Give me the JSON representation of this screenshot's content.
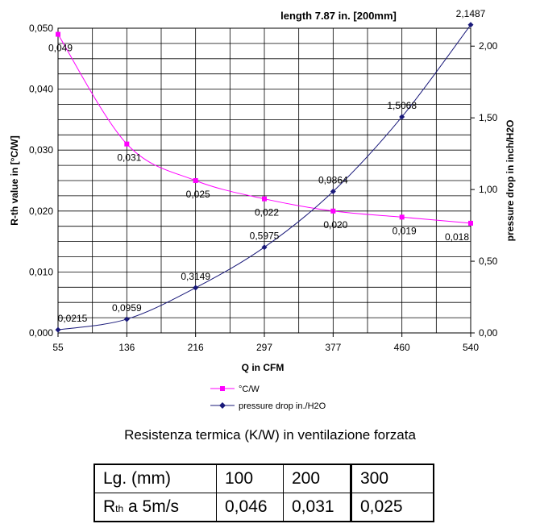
{
  "chart_data": {
    "type": "line",
    "title": "length 7.87 in. [200mm]",
    "xlabel": "Q in CFM",
    "ylabel_left": "R-th value in [°C/W]",
    "ylabel_right": "pressure drop in inch/H2O",
    "x": [
      55,
      136,
      216,
      297,
      377,
      460,
      540
    ],
    "x_tick_labels": [
      "55",
      "136",
      "216",
      "297",
      "377",
      "460",
      "540"
    ],
    "ylim_left": [
      0,
      0.05
    ],
    "yticks_left": [
      "0,000",
      "0,010",
      "0,020",
      "0,030",
      "0,040",
      "0,050"
    ],
    "ylim_right": [
      0,
      2.125
    ],
    "yticks_right": [
      "0,00",
      "0,50",
      "1,00",
      "1,50",
      "2,00"
    ],
    "grid": true,
    "legend_position": "bottom-center",
    "series": [
      {
        "name": "°C/W",
        "axis": "left",
        "color": "#ff00ff",
        "marker": "square",
        "values": [
          0.049,
          0.031,
          0.025,
          0.022,
          0.02,
          0.019,
          0.018
        ],
        "labels": [
          "0,049",
          "0,031",
          "0,025",
          "0,022",
          "0,020",
          "0,019",
          "0,018"
        ]
      },
      {
        "name": "pressure drop in./H2O",
        "axis": "right",
        "color": "#1a1a7a",
        "marker": "diamond",
        "values": [
          0.0215,
          0.0959,
          0.3149,
          0.5975,
          0.9864,
          1.5068,
          2.1487
        ],
        "labels": [
          "0,0215",
          "0,0959",
          "0,3149",
          "0,5975",
          "0,9864",
          "1,5068",
          "2,1487"
        ]
      }
    ]
  },
  "caption": "Resistenza termica (K/W) in ventilazione forzata",
  "table": {
    "row1": {
      "label": "Lg. (mm)",
      "v1": "100",
      "v2": "200",
      "v3": "300"
    },
    "row2": {
      "label_main": "R",
      "label_sub": "th",
      "label_rest": " a 5m/s",
      "v1": "0,046",
      "v2": "0,031",
      "v3": "0,025"
    }
  }
}
